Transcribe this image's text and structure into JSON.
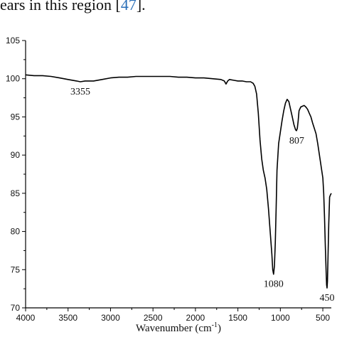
{
  "context": {
    "before": "ears in this region [",
    "ref": "47",
    "after": "]."
  },
  "chart_data": {
    "type": "line",
    "xlabel": "Wavenumber (cm",
    "xlabel_sup": "-1",
    "xlabel_close": ")",
    "ylabel": "",
    "xlim": [
      4000,
      400
    ],
    "ylim": [
      70,
      105
    ],
    "x_reversed": true,
    "x_ticks": [
      4000,
      3500,
      3000,
      2500,
      2000,
      1500,
      1000,
      500
    ],
    "y_ticks": [
      70,
      75,
      80,
      85,
      90,
      95,
      100,
      105
    ],
    "grid": false,
    "line_color": "#000000",
    "series": [
      {
        "x": [
          4000,
          3900,
          3800,
          3700,
          3600,
          3500,
          3400,
          3355,
          3300,
          3200,
          3100,
          3000,
          2900,
          2800,
          2700,
          2600,
          2500,
          2400,
          2300,
          2200,
          2100,
          2000,
          1900,
          1800,
          1700,
          1660,
          1640,
          1620,
          1600,
          1550,
          1500,
          1450,
          1400,
          1350,
          1320,
          1300,
          1280,
          1260,
          1240,
          1220,
          1200,
          1180,
          1160,
          1140,
          1120,
          1100,
          1090,
          1080,
          1070,
          1060,
          1050,
          1040,
          1020,
          1000,
          980,
          960,
          940,
          920,
          900,
          880,
          860,
          840,
          820,
          810,
          800,
          790,
          780,
          760,
          740,
          720,
          700,
          680,
          660,
          640,
          620,
          600,
          580,
          560,
          540,
          520,
          500,
          490,
          480,
          470,
          460,
          455,
          450,
          445,
          440,
          430,
          420,
          410,
          400
        ],
        "y": [
          100.5,
          100.4,
          100.4,
          100.3,
          100.1,
          99.9,
          99.7,
          99.6,
          99.7,
          99.7,
          99.9,
          100.1,
          100.2,
          100.2,
          100.3,
          100.3,
          100.3,
          100.3,
          100.3,
          100.2,
          100.2,
          100.1,
          100.1,
          100.0,
          99.9,
          99.7,
          99.3,
          99.7,
          99.9,
          99.8,
          99.7,
          99.7,
          99.6,
          99.6,
          99.4,
          99.0,
          98.0,
          95.5,
          92.0,
          89.5,
          88.0,
          87.0,
          85.5,
          83.0,
          80.0,
          77.0,
          75.0,
          74.4,
          75.5,
          78.5,
          83.0,
          88.0,
          91.5,
          93.0,
          94.5,
          95.8,
          96.8,
          97.3,
          97.0,
          96.0,
          95.0,
          94.0,
          93.3,
          93.2,
          93.5,
          94.5,
          95.8,
          96.3,
          96.4,
          96.5,
          96.3,
          96.0,
          95.5,
          95.0,
          94.2,
          93.5,
          92.8,
          91.5,
          90.0,
          88.5,
          87.0,
          85.0,
          82.0,
          78.0,
          74.5,
          73.0,
          72.6,
          73.5,
          76.0,
          81.0,
          84.5,
          84.8,
          85.0
        ]
      }
    ],
    "annotations": [
      {
        "label": "3355",
        "x": 3355,
        "y": 99.6,
        "placement": "below"
      },
      {
        "label": "1080",
        "x": 1080,
        "y": 74.4,
        "placement": "below"
      },
      {
        "label": "807",
        "x": 807,
        "y": 93.2,
        "placement": "below"
      },
      {
        "label": "450",
        "x": 450,
        "y": 72.6,
        "placement": "below"
      }
    ]
  }
}
